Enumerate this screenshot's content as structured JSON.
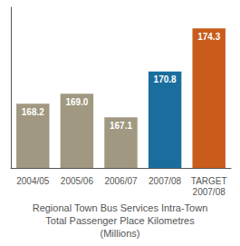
{
  "chart_data": {
    "type": "bar",
    "title": "Regional Town Bus Services Intra-Town\nTotal Passenger Place Kilometres\n(Millions)",
    "categories": [
      "2004/05",
      "2005/06",
      "2006/07",
      "2007/08",
      "TARGET\n2007/08"
    ],
    "values": [
      168.2,
      169.0,
      167.1,
      170.8,
      174.3
    ],
    "value_labels": [
      "168.2",
      "169.0",
      "167.1",
      "170.8",
      "174.3"
    ],
    "colors": [
      "#a09880",
      "#a09880",
      "#a09880",
      "#1a6e9e",
      "#c95c1a"
    ],
    "ylim": [
      163.0,
      176.0
    ],
    "data_labels": true,
    "tick_labels": "x",
    "grid": false
  }
}
